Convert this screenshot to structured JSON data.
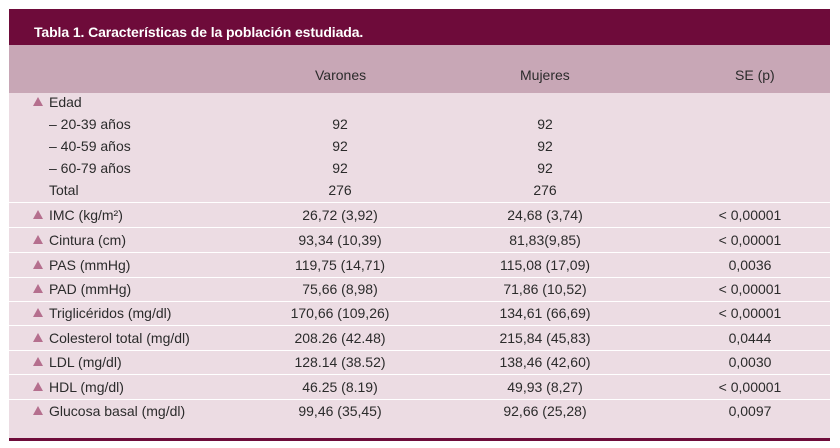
{
  "table": {
    "title": "Tabla 1. Características de la población estudiada.",
    "headers": [
      "",
      "Varones",
      "Mujeres",
      "SE (p)"
    ],
    "rows": [
      {
        "label": "Edad",
        "bullet": "triangle",
        "varones": "",
        "mujeres": "",
        "se": ""
      },
      {
        "label": "–  20-39 años",
        "bullet": "none",
        "varones": "92",
        "mujeres": "92",
        "se": ""
      },
      {
        "label": "–  40-59 años",
        "bullet": "none",
        "varones": "92",
        "mujeres": "92",
        "se": ""
      },
      {
        "label": "–  60-79 años",
        "bullet": "none",
        "varones": "92",
        "mujeres": "92",
        "se": ""
      },
      {
        "label": "Total",
        "bullet": "none",
        "varones": "276",
        "mujeres": "276",
        "se": ""
      },
      {
        "label": "IMC (kg/m²)",
        "bullet": "triangle",
        "varones": "26,72 (3,92)",
        "mujeres": "24,68 (3,74)",
        "se": "< 0,00001"
      },
      {
        "label": "Cintura (cm)",
        "bullet": "triangle",
        "varones": "93,34 (10,39)",
        "mujeres": "81,83(9,85)",
        "se": "< 0,00001"
      },
      {
        "label": "PAS (mmHg)",
        "bullet": "triangle",
        "varones": "119,75 (14,71)",
        "mujeres": "115,08 (17,09)",
        "se": "0,0036"
      },
      {
        "label": "PAD (mmHg)",
        "bullet": "triangle",
        "varones": "75,66 (8,98)",
        "mujeres": "71,86 (10,52)",
        "se": "< 0,00001"
      },
      {
        "label": "Triglicéridos (mg/dl)",
        "bullet": "triangle",
        "varones": "170,66 (109,26)",
        "mujeres": "134,61 (66,69)",
        "se": "< 0,00001"
      },
      {
        "label": "Colesterol total (mg/dl)",
        "bullet": "triangle",
        "varones": "208.26 (42.48)",
        "mujeres": "215,84 (45,83)",
        "se": "0,0444"
      },
      {
        "label": "LDL (mg/dl)",
        "bullet": "triangle",
        "varones": "128.14 (38.52)",
        "mujeres": "138,46 (42,60)",
        "se": "0,0030"
      },
      {
        "label": "HDL (mg/dl)",
        "bullet": "triangle",
        "varones": "46.25 (8.19)",
        "mujeres": "49,93 (8,27)",
        "se": "< 0,00001"
      },
      {
        "label": "Glucosa basal (mg/dl)",
        "bullet": "triangle",
        "varones": "99,46 (35,45)",
        "mujeres": "92,66 (25,28)",
        "se": "0,0097"
      }
    ]
  },
  "colors": {
    "title_bar": "#6e0b3a",
    "header_row": "#c8a7b6",
    "body_bg": "#ecdce3",
    "bullet": "#b56f8e"
  }
}
